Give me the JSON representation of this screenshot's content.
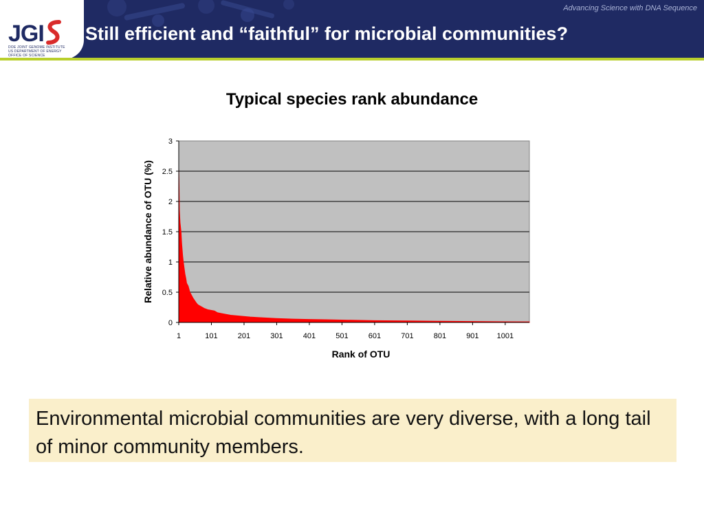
{
  "header": {
    "tagline": "Advancing Science with DNA Sequence",
    "title": "Still efficient and “faithful” for microbial communities?",
    "logo_text": "JGI",
    "logo_subtext_1": "DOE JOINT GENOME INSTITUTE",
    "logo_subtext_2": "US DEPARTMENT OF ENERGY",
    "logo_subtext_3": "OFFICE OF SCIENCE"
  },
  "note": {
    "text": "Environmental microbial communities are very diverse, with a long tail of minor community members."
  },
  "colors": {
    "header_bg": "#1f2a63",
    "accent_bar": "#b9cf2c",
    "plot_bg": "#c0c0c0",
    "series": "#ff0000",
    "note_bg": "#faefcb"
  },
  "chart_data": {
    "type": "bar",
    "title": "Typical species rank abundance",
    "xlabel": "Rank of OTU",
    "ylabel": "Relative abundance of OTU (%)",
    "xlim": [
      1,
      1075
    ],
    "ylim": [
      0,
      3
    ],
    "yticks": [
      "0",
      "0.5",
      "1",
      "1.5",
      "2",
      "2.5",
      "3"
    ],
    "xticks": [
      "1",
      "101",
      "201",
      "301",
      "401",
      "501",
      "601",
      "701",
      "801",
      "901",
      "1001"
    ],
    "grid": "horizontal",
    "legend": "none",
    "series": [
      {
        "x": [
          1,
          2,
          3,
          5,
          8,
          10,
          13,
          15,
          18,
          20,
          23,
          25,
          30,
          35,
          40,
          45,
          50,
          55,
          60,
          70,
          80,
          90,
          100,
          110,
          120,
          140,
          160,
          180,
          200,
          220,
          250,
          300,
          350,
          400,
          450,
          500,
          600,
          700,
          800,
          900,
          1000,
          1075
        ],
        "values": [
          2.55,
          2.25,
          1.85,
          1.65,
          1.5,
          1.3,
          1.1,
          1.0,
          0.88,
          0.8,
          0.72,
          0.65,
          0.6,
          0.5,
          0.45,
          0.4,
          0.36,
          0.32,
          0.29,
          0.26,
          0.23,
          0.21,
          0.2,
          0.19,
          0.16,
          0.14,
          0.12,
          0.11,
          0.1,
          0.09,
          0.08,
          0.065,
          0.055,
          0.05,
          0.045,
          0.04,
          0.03,
          0.025,
          0.02,
          0.015,
          0.012,
          0.01
        ]
      }
    ]
  }
}
